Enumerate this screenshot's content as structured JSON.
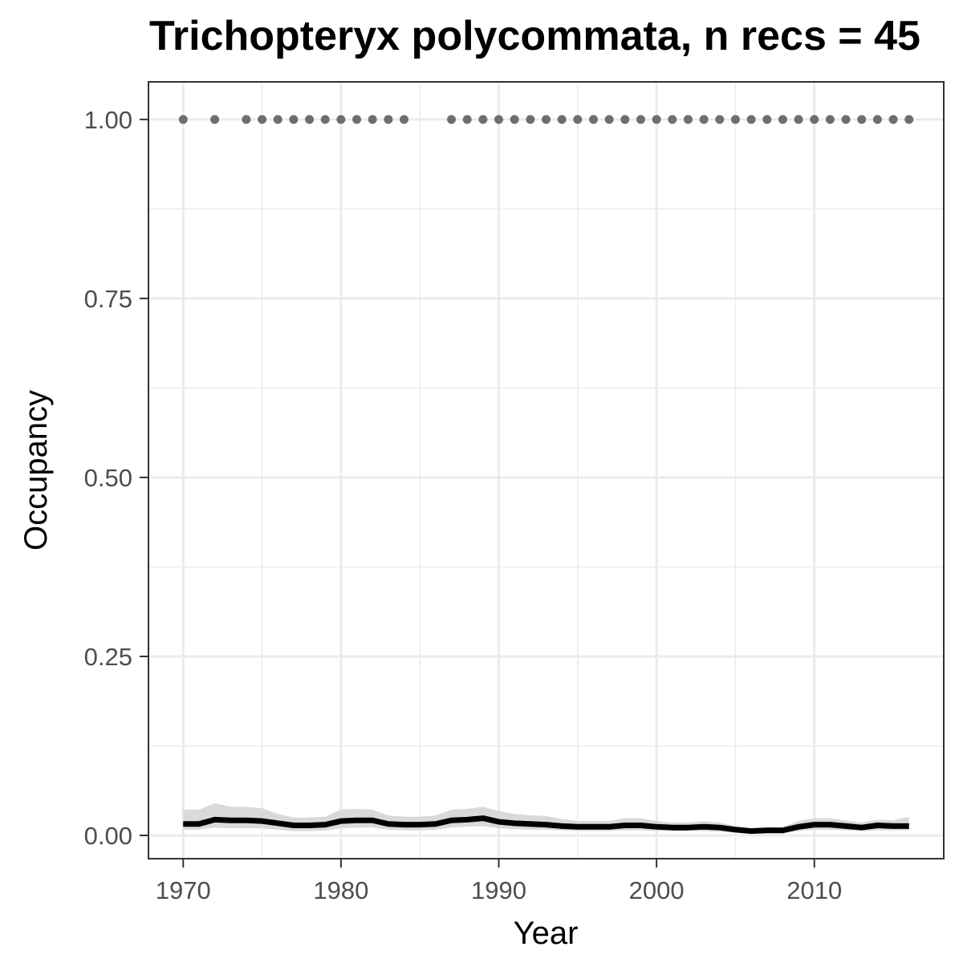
{
  "chart_data": {
    "type": "line",
    "title": "Trichopteryx polycommata, n recs = 45",
    "xlabel": "Year",
    "ylabel": "Occupancy",
    "xlim": [
      1967.8,
      2018.2
    ],
    "ylim": [
      -0.0325,
      1.0525
    ],
    "x_ticks": [
      1970,
      1980,
      1990,
      2000,
      2010
    ],
    "x_tick_labels": [
      "1970",
      "1980",
      "1990",
      "2000",
      "2010"
    ],
    "y_ticks": [
      0,
      0.25,
      0.5,
      0.75,
      1
    ],
    "y_tick_labels": [
      "0.00",
      "0.25",
      "0.50",
      "0.75",
      "1.00"
    ],
    "grid": true,
    "legend": "none",
    "colors": {
      "line": "#000000",
      "ribbon": "#d9d9d9",
      "points": "#6e6e6e",
      "grid": "#ebebeb",
      "border": "#333333"
    },
    "record_years": [
      1970,
      1972,
      1974,
      1975,
      1976,
      1977,
      1978,
      1979,
      1980,
      1981,
      1982,
      1983,
      1984,
      1987,
      1988,
      1989,
      1990,
      1991,
      1992,
      1993,
      1994,
      1995,
      1996,
      1997,
      1998,
      1999,
      2000,
      2001,
      2002,
      2003,
      2004,
      2005,
      2006,
      2007,
      2008,
      2009,
      2010,
      2011,
      2012,
      2013,
      2014,
      2015,
      2016
    ],
    "record_value": 1,
    "series": [
      {
        "x": [
          1970,
          1971,
          1972,
          1973,
          1974,
          1975,
          1976,
          1977,
          1978,
          1979,
          1980,
          1981,
          1982,
          1983,
          1984,
          1985,
          1986,
          1987,
          1988,
          1989,
          1990,
          1991,
          1992,
          1993,
          1994,
          1995,
          1996,
          1997,
          1998,
          1999,
          2000,
          2001,
          2002,
          2003,
          2004,
          2005,
          2006,
          2007,
          2008,
          2009,
          2010,
          2011,
          2012,
          2013,
          2014,
          2015,
          2016
        ],
        "y": [
          0.016,
          0.016,
          0.022,
          0.021,
          0.021,
          0.02,
          0.017,
          0.014,
          0.014,
          0.015,
          0.02,
          0.021,
          0.021,
          0.016,
          0.015,
          0.015,
          0.016,
          0.021,
          0.022,
          0.024,
          0.019,
          0.017,
          0.016,
          0.015,
          0.013,
          0.012,
          0.012,
          0.012,
          0.014,
          0.014,
          0.012,
          0.011,
          0.011,
          0.012,
          0.011,
          0.008,
          0.006,
          0.007,
          0.007,
          0.012,
          0.015,
          0.015,
          0.013,
          0.011,
          0.014,
          0.013,
          0.013
        ],
        "lower": [
          0.008,
          0.008,
          0.011,
          0.01,
          0.01,
          0.01,
          0.008,
          0.006,
          0.006,
          0.007,
          0.01,
          0.011,
          0.011,
          0.008,
          0.007,
          0.007,
          0.008,
          0.011,
          0.012,
          0.013,
          0.01,
          0.009,
          0.008,
          0.008,
          0.007,
          0.006,
          0.006,
          0.006,
          0.007,
          0.007,
          0.006,
          0.006,
          0.006,
          0.006,
          0.005,
          0.004,
          0.003,
          0.003,
          0.003,
          0.006,
          0.008,
          0.008,
          0.007,
          0.006,
          0.007,
          0.007,
          0.007
        ],
        "upper": [
          0.036,
          0.036,
          0.045,
          0.04,
          0.04,
          0.038,
          0.03,
          0.025,
          0.025,
          0.026,
          0.036,
          0.037,
          0.036,
          0.028,
          0.026,
          0.026,
          0.028,
          0.036,
          0.037,
          0.04,
          0.034,
          0.03,
          0.028,
          0.027,
          0.023,
          0.02,
          0.02,
          0.02,
          0.024,
          0.024,
          0.02,
          0.018,
          0.018,
          0.02,
          0.018,
          0.013,
          0.01,
          0.012,
          0.012,
          0.02,
          0.024,
          0.024,
          0.021,
          0.018,
          0.022,
          0.021,
          0.026
        ]
      }
    ]
  }
}
